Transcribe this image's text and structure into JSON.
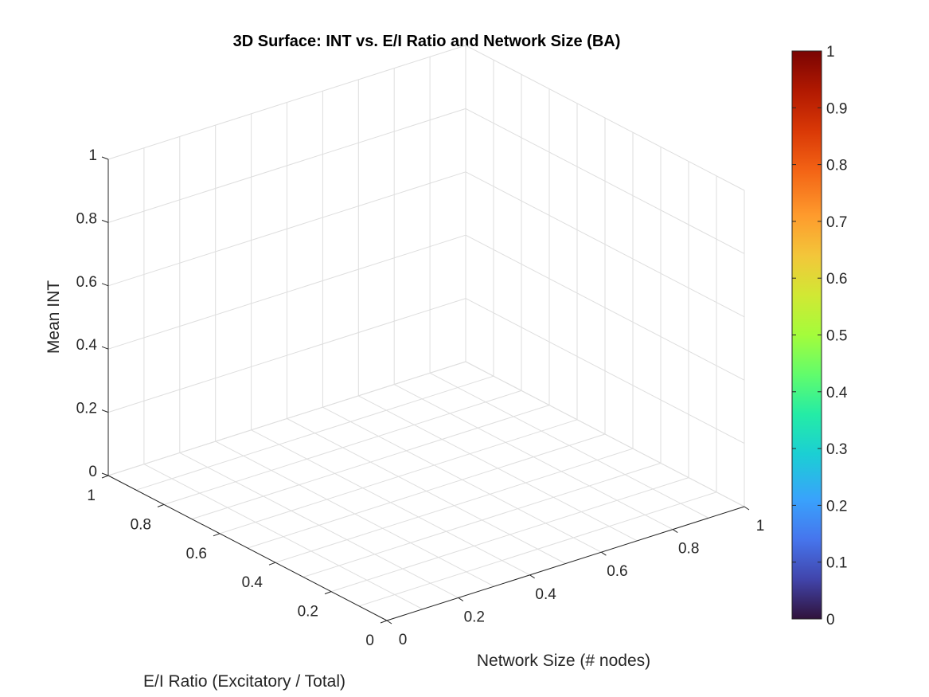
{
  "chart_data": {
    "type": "surface",
    "title": "3D Surface: INT vs. E/I Ratio and Network Size (BA)",
    "xlabel": "Network Size (# nodes)",
    "ylabel": "E/I Ratio (Excitatory / Total)",
    "zlabel": "Mean INT",
    "xlim": [
      0,
      1
    ],
    "ylim": [
      0,
      1
    ],
    "zlim": [
      0,
      1
    ],
    "x_ticks": [
      "0",
      "0.2",
      "0.4",
      "0.6",
      "0.8",
      "1"
    ],
    "y_ticks": [
      "0",
      "0.2",
      "0.4",
      "0.6",
      "0.8",
      "1"
    ],
    "z_ticks": [
      "0",
      "0.2",
      "0.4",
      "0.6",
      "0.8",
      "1"
    ],
    "grid": true,
    "data": [],
    "colorbar": {
      "colormap": "turbo",
      "limits": [
        0,
        1
      ],
      "ticks": [
        "0",
        "0.1",
        "0.2",
        "0.3",
        "0.4",
        "0.5",
        "0.6",
        "0.7",
        "0.8",
        "0.9",
        "1"
      ],
      "placement": "right"
    }
  }
}
